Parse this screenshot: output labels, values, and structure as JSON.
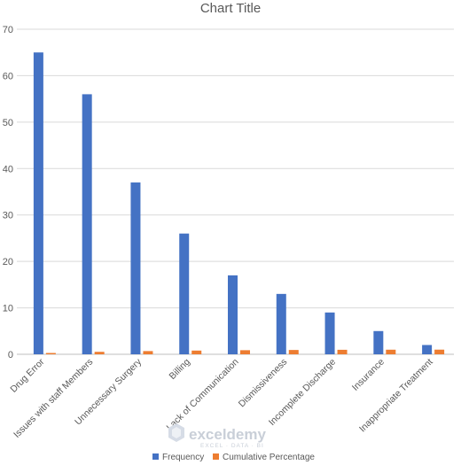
{
  "chart_data": {
    "type": "bar",
    "title": "Chart Title",
    "categories": [
      "Drug Error",
      "Issues with staff Members",
      "Unnecessary Surgery",
      "Billing",
      "Lack of Communication",
      "Dismissiveness",
      "Incomplete Discharge",
      "Insurance",
      "Inappropriate Treatment"
    ],
    "series": [
      {
        "name": "Frequency",
        "color": "#4472C4",
        "values": [
          65,
          56,
          37,
          26,
          17,
          13,
          9,
          5,
          2
        ]
      },
      {
        "name": "Cumulative Percentage",
        "color": "#ED7D31",
        "values": [
          0.28,
          0.53,
          0.69,
          0.8,
          0.88,
          0.93,
          0.97,
          0.99,
          1.0
        ]
      }
    ],
    "ylim": [
      0,
      70
    ],
    "yticks": [
      0,
      10,
      20,
      30,
      40,
      50,
      60,
      70
    ],
    "grid": true,
    "legend": "bottom",
    "xlabel": "",
    "ylabel": ""
  },
  "watermark": {
    "name": "exceldemy",
    "tagline": "EXCEL · DATA · BI"
  }
}
